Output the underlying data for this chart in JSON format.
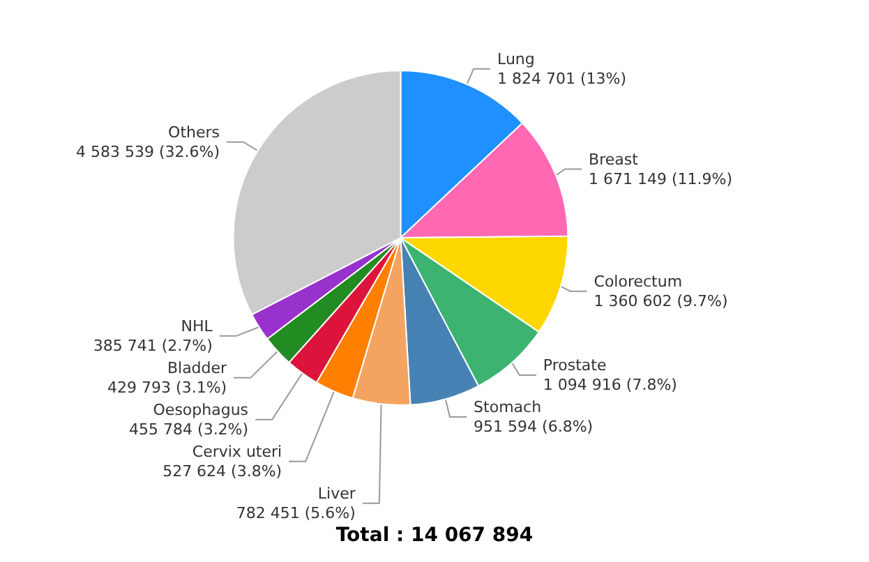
{
  "chart_data": {
    "type": "pie",
    "categories": [
      "Lung",
      "Breast",
      "Colorectum",
      "Prostate",
      "Stomach",
      "Liver",
      "Cervix uteri",
      "Oesophagus",
      "Bladder",
      "NHL",
      "Others"
    ],
    "values": [
      1824701,
      1671149,
      1360602,
      1094916,
      951594,
      782451,
      527624,
      455784,
      429793,
      385741,
      4583539
    ],
    "value_labels": [
      "1 824 701 (13%)",
      "1 671 149 (11.9%)",
      "1 360 602 (9.7%)",
      "1 094 916 (7.8%)",
      "951 594 (6.8%)",
      "782 451 (5.6%)",
      "527 624 (3.8%)",
      "455 784 (3.2%)",
      "429 793 (3.1%)",
      "385 741 (2.7%)",
      "4 583 539 (32.6%)"
    ],
    "colors": [
      "#1e90ff",
      "#ff69b4",
      "#ffd700",
      "#3cb371",
      "#4682b4",
      "#f4a460",
      "#ff7f00",
      "#dc143c",
      "#228b22",
      "#9932cc",
      "#cccccc"
    ],
    "annotations": [
      "Total : 14 067 894"
    ]
  }
}
